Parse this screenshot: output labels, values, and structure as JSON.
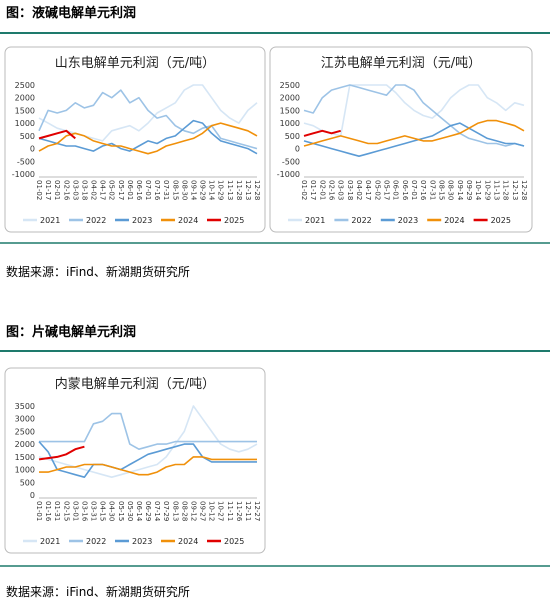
{
  "sections": [
    {
      "title": "图：液碱电解单元利润",
      "source": "数据来源：iFind、新湖期货研究所"
    },
    {
      "title": "图：片碱电解单元利润",
      "source": "数据来源：iFind、新湖期货研究所"
    }
  ],
  "chart_data": [
    {
      "type": "line",
      "title": "山东电解单元利润（元/吨）",
      "categories": [
        "01-02",
        "01-17",
        "02-01",
        "02-16",
        "03-03",
        "03-18",
        "04-02",
        "04-17",
        "05-02",
        "05-17",
        "06-01",
        "06-16",
        "07-01",
        "07-16",
        "07-31",
        "08-15",
        "08-30",
        "09-14",
        "09-29",
        "10-14",
        "10-29",
        "11-13",
        "11-28",
        "12-13",
        "12-28"
      ],
      "ylim": [
        -1000,
        2500
      ],
      "yticks": [
        -1000,
        -500,
        0,
        500,
        1000,
        1500,
        2000,
        2500
      ],
      "series": [
        {
          "name": "2021",
          "color": "#d6e6f5",
          "values": [
            1200,
            1000,
            800,
            700,
            600,
            500,
            400,
            300,
            700,
            800,
            900,
            700,
            1000,
            1400,
            1600,
            1800,
            2300,
            2500,
            2500,
            2000,
            1500,
            1200,
            1000,
            1500,
            1800
          ]
        },
        {
          "name": "2022",
          "color": "#9dc3e6",
          "values": [
            700,
            1500,
            1400,
            1500,
            1800,
            1600,
            1700,
            2200,
            2000,
            2300,
            1800,
            2000,
            1500,
            1200,
            1300,
            900,
            700,
            600,
            800,
            900,
            400,
            300,
            200,
            100,
            0
          ]
        },
        {
          "name": "2023",
          "color": "#5b9bd5",
          "values": [
            400,
            300,
            200,
            100,
            100,
            0,
            -100,
            100,
            200,
            0,
            -100,
            100,
            300,
            200,
            400,
            500,
            800,
            1100,
            1000,
            600,
            300,
            200,
            100,
            0,
            -200
          ]
        },
        {
          "name": "2024",
          "color": "#f0900a",
          "values": [
            -100,
            100,
            200,
            500,
            600,
            500,
            300,
            200,
            100,
            100,
            0,
            -100,
            -200,
            -100,
            100,
            200,
            300,
            400,
            600,
            900,
            1000,
            900,
            800,
            700,
            500
          ]
        },
        {
          "name": "2025",
          "color": "#e00000",
          "values": [
            400,
            500,
            600,
            700,
            400,
            null,
            null,
            null,
            null,
            null,
            null,
            null,
            null,
            null,
            null,
            null,
            null,
            null,
            null,
            null,
            null,
            null,
            null,
            null,
            null
          ]
        }
      ]
    },
    {
      "type": "line",
      "title": "江苏电解单元利润（元/吨）",
      "categories": [
        "01-02",
        "01-17",
        "02-01",
        "02-16",
        "03-03",
        "03-18",
        "04-02",
        "04-17",
        "05-02",
        "05-17",
        "06-01",
        "06-16",
        "07-01",
        "07-16",
        "07-31",
        "08-15",
        "08-30",
        "09-14",
        "09-29",
        "10-14",
        "10-29",
        "11-13",
        "11-28",
        "12-13",
        "12-28"
      ],
      "ylim": [
        -1000,
        2500
      ],
      "yticks": [
        -1000,
        -500,
        0,
        500,
        1000,
        1500,
        2000,
        2500
      ],
      "series": [
        {
          "name": "2021",
          "color": "#d6e6f5",
          "values": [
            1000,
            900,
            700,
            600,
            500,
            2500,
            2500,
            2500,
            2500,
            2500,
            2200,
            1800,
            1500,
            1300,
            1200,
            1500,
            2000,
            2300,
            2500,
            2500,
            2000,
            1800,
            1500,
            1800,
            1700
          ]
        },
        {
          "name": "2022",
          "color": "#9dc3e6",
          "values": [
            1500,
            1400,
            2000,
            2300,
            2400,
            2500,
            2400,
            2300,
            2200,
            2100,
            2500,
            2500,
            2300,
            1800,
            1500,
            1200,
            900,
            600,
            400,
            300,
            200,
            200,
            100,
            200,
            100
          ]
        },
        {
          "name": "2023",
          "color": "#5b9bd5",
          "values": [
            300,
            200,
            100,
            0,
            -100,
            -200,
            -300,
            -200,
            -100,
            0,
            100,
            200,
            300,
            400,
            500,
            700,
            900,
            1000,
            800,
            600,
            400,
            300,
            200,
            200,
            100
          ]
        },
        {
          "name": "2024",
          "color": "#f0900a",
          "values": [
            100,
            200,
            300,
            400,
            500,
            400,
            300,
            200,
            200,
            300,
            400,
            500,
            400,
            300,
            300,
            400,
            500,
            600,
            800,
            1000,
            1100,
            1100,
            1000,
            900,
            700
          ]
        },
        {
          "name": "2025",
          "color": "#e00000",
          "values": [
            500,
            600,
            700,
            600,
            700,
            null,
            null,
            null,
            null,
            null,
            null,
            null,
            null,
            null,
            null,
            null,
            null,
            null,
            null,
            null,
            null,
            null,
            null,
            null,
            null
          ]
        }
      ]
    },
    {
      "type": "line",
      "title": "内蒙电解单元利润（元/吨）",
      "categories": [
        "01-01",
        "01-16",
        "01-31",
        "02-15",
        "03-01",
        "03-16",
        "03-31",
        "04-15",
        "04-30",
        "05-15",
        "05-30",
        "06-14",
        "06-29",
        "07-14",
        "07-29",
        "08-13",
        "08-28",
        "09-12",
        "09-27",
        "10-12",
        "10-27",
        "11-11",
        "11-26",
        "12-11",
        "12-27"
      ],
      "ylim": [
        0,
        3500
      ],
      "yticks": [
        0,
        500,
        1000,
        1500,
        2000,
        2500,
        3000,
        3500
      ],
      "series": [
        {
          "name": "2021",
          "color": "#d6e6f5",
          "values": [
            1500,
            1400,
            1300,
            1200,
            1100,
            1000,
            900,
            800,
            700,
            800,
            900,
            1000,
            1100,
            1200,
            1500,
            2000,
            2500,
            3500,
            3000,
            2500,
            2000,
            1800,
            1700,
            1800,
            2000
          ]
        },
        {
          "name": "2022",
          "color": "#9dc3e6",
          "values": [
            2100,
            2100,
            2100,
            2100,
            2100,
            2100,
            2800,
            2900,
            3200,
            3200,
            2000,
            1800,
            1900,
            2000,
            2000,
            2100,
            2100,
            2100,
            2100,
            2100,
            2100,
            2100,
            2100,
            2100,
            2100
          ]
        },
        {
          "name": "2023",
          "color": "#5b9bd5",
          "values": [
            2100,
            1700,
            1000,
            900,
            800,
            700,
            1200,
            1200,
            1100,
            1000,
            1200,
            1400,
            1600,
            1700,
            1800,
            1900,
            2000,
            2000,
            1500,
            1300,
            1300,
            1300,
            1300,
            1300,
            1300
          ]
        },
        {
          "name": "2024",
          "color": "#f0900a",
          "values": [
            900,
            900,
            1000,
            1100,
            1100,
            1200,
            1200,
            1200,
            1100,
            1000,
            900,
            800,
            800,
            900,
            1100,
            1200,
            1200,
            1500,
            1500,
            1400,
            1400,
            1400,
            1400,
            1400,
            1400
          ]
        },
        {
          "name": "2025",
          "color": "#e00000",
          "values": [
            1400,
            1450,
            1500,
            1600,
            1800,
            1900,
            null,
            null,
            null,
            null,
            null,
            null,
            null,
            null,
            null,
            null,
            null,
            null,
            null,
            null,
            null,
            null,
            null,
            null,
            null
          ]
        }
      ]
    }
  ]
}
